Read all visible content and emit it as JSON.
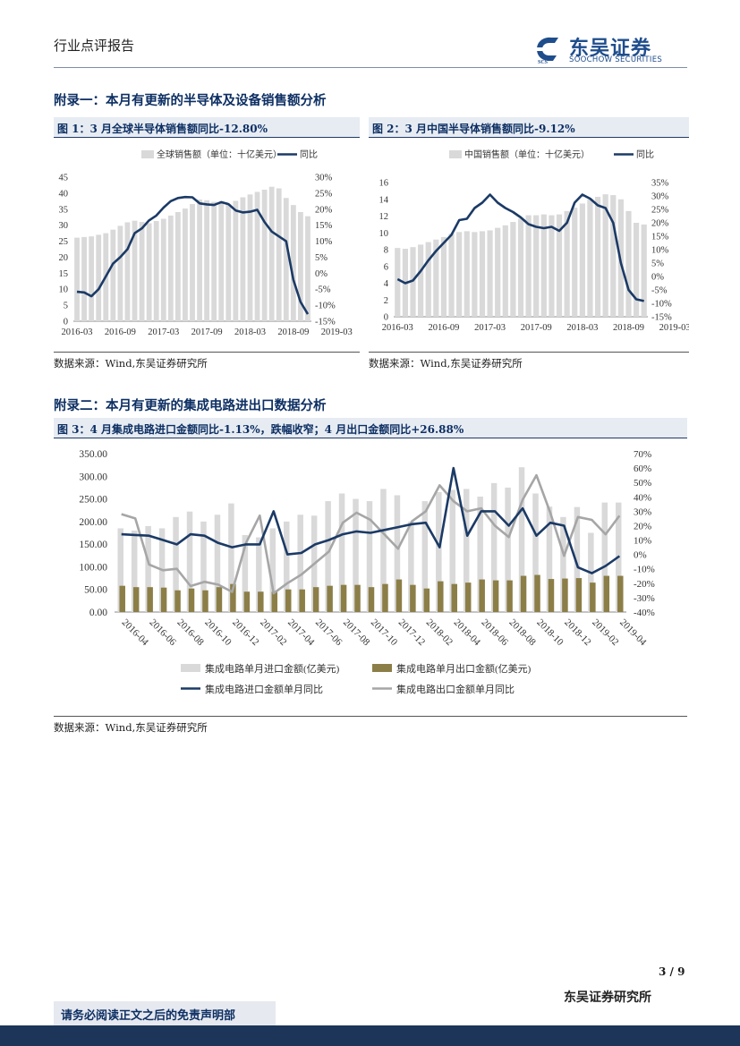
{
  "header": {
    "left_title": "行业点评报告",
    "logo_cn": "东吴证券",
    "logo_en": "SOOCHOW SECURITIES"
  },
  "section1": {
    "title": "附录一：本月有更新的半导体及设备销售额分析",
    "source": "数据来源：Wind,东吴证券研究所"
  },
  "section2": {
    "title": "附录二：本月有更新的集成电路进出口数据分析",
    "source": "数据来源：Wind,东吴证券研究所"
  },
  "footer": {
    "disclaimer": "请务必阅读正文之后的免责声明部",
    "page": "3 / 9",
    "org": "东吴证券研究所"
  },
  "colors": {
    "navy": "#1b3a66",
    "bar_gray": "#d9d9d9",
    "gold": "#8c7e47",
    "line_gray": "#a6a6a6"
  },
  "chart_data": [
    {
      "type": "bar",
      "title": "图 1：3 月全球半导体销售额同比-12.80%",
      "x_tick_labels": [
        "2016-03",
        "2016-09",
        "2017-03",
        "2017-09",
        "2018-03",
        "2018-09",
        "2019-03"
      ],
      "ylim": [
        0,
        45
      ],
      "y_ticks": [
        "0",
        "5",
        "10",
        "15",
        "20",
        "25",
        "30",
        "35",
        "40",
        "45"
      ],
      "y2lim": [
        -15,
        30
      ],
      "y2_ticks": [
        "-15%",
        "-10%",
        "-5%",
        "0%",
        "5%",
        "10%",
        "15%",
        "20%",
        "25%",
        "30%"
      ],
      "legend_placement": "top",
      "series": [
        {
          "name": "全球销售额（单位：十亿美元）",
          "kind": "bar",
          "axis": "left",
          "values": [
            26.1,
            26.3,
            26.5,
            27.0,
            27.5,
            28.6,
            29.8,
            30.9,
            31.4,
            31.0,
            30.6,
            31.3,
            32.0,
            33.0,
            34.1,
            35.2,
            36.6,
            38.0,
            37.8,
            37.3,
            37.0,
            36.6,
            37.6,
            38.7,
            39.6,
            40.4,
            41.1,
            42.0,
            41.5,
            38.5,
            36.3,
            34.1,
            32.8
          ]
        },
        {
          "name": "同比",
          "kind": "line",
          "axis": "right",
          "values": [
            -5.8,
            -6.0,
            -7.2,
            -5.0,
            -1.0,
            3.0,
            5.0,
            7.5,
            12.5,
            14.0,
            16.5,
            18.0,
            20.5,
            22.5,
            23.5,
            23.8,
            23.7,
            21.8,
            21.5,
            21.3,
            22.2,
            21.6,
            19.6,
            19.0,
            19.2,
            19.8,
            16.0,
            13.0,
            11.5,
            10.0,
            -2.0,
            -9.0,
            -12.8
          ]
        }
      ]
    },
    {
      "type": "bar",
      "title": "图 2：3 月中国半导体销售额同比-9.12%",
      "x_tick_labels": [
        "2016-03",
        "2016-09",
        "2017-03",
        "2017-09",
        "2018-03",
        "2018-09",
        "2019-03"
      ],
      "ylim": [
        0,
        16
      ],
      "y_ticks": [
        "0",
        "2",
        "4",
        "6",
        "8",
        "10",
        "12",
        "14",
        "16"
      ],
      "y2lim": [
        -15,
        35
      ],
      "y2_ticks": [
        "-15%",
        "-10%",
        "-5%",
        "0%",
        "5%",
        "10%",
        "15%",
        "20%",
        "25%",
        "30%",
        "35%"
      ],
      "legend_placement": "top",
      "series": [
        {
          "name": "中国销售额（单位：十亿美元）",
          "kind": "bar",
          "axis": "left",
          "values": [
            8.2,
            8.1,
            8.3,
            8.6,
            8.9,
            9.2,
            9.5,
            9.9,
            10.1,
            10.2,
            10.1,
            10.2,
            10.3,
            10.6,
            10.9,
            11.3,
            11.7,
            12.1,
            12.1,
            12.2,
            12.1,
            12.2,
            12.6,
            13.0,
            13.5,
            14.0,
            14.3,
            14.6,
            14.5,
            14.0,
            12.6,
            11.2,
            11.0
          ]
        },
        {
          "name": "同比",
          "kind": "line",
          "axis": "right",
          "values": [
            -1.0,
            -2.5,
            -1.5,
            2.0,
            6.0,
            9.5,
            12.5,
            15.5,
            21.0,
            21.5,
            25.5,
            27.5,
            30.5,
            27.5,
            25.5,
            24.0,
            22.0,
            19.5,
            18.5,
            18.0,
            18.5,
            17.0,
            20.0,
            27.5,
            30.5,
            29.0,
            26.5,
            25.5,
            20.0,
            5.0,
            -5.0,
            -8.5,
            -9.12
          ]
        }
      ]
    },
    {
      "type": "bar",
      "title": "图 3：4 月集成电路进口金额同比-1.13%，跌幅收窄；4 月出口金额同比+26.88%",
      "categories": [
        "2016-04",
        "2016-05",
        "2016-06",
        "2016-07",
        "2016-08",
        "2016-09",
        "2016-10",
        "2016-11",
        "2016-12",
        "2017-01",
        "2017-02",
        "2017-03",
        "2017-04",
        "2017-05",
        "2017-06",
        "2017-07",
        "2017-08",
        "2017-09",
        "2017-10",
        "2017-11",
        "2017-12",
        "2018-01",
        "2018-02",
        "2018-03",
        "2018-04",
        "2018-05",
        "2018-06",
        "2018-07",
        "2018-08",
        "2018-09",
        "2018-10",
        "2018-11",
        "2018-12",
        "2019-01",
        "2019-02",
        "2019-03",
        "2019-04"
      ],
      "x_tick_labels": [
        "2016-04",
        "2016-06",
        "2016-08",
        "2016-10",
        "2016-12",
        "2017-02",
        "2017-04",
        "2017-06",
        "2017-08",
        "2017-10",
        "2017-12",
        "2018-02",
        "2018-04",
        "2018-06",
        "2018-08",
        "2018-10",
        "2018-12",
        "2019-02",
        "2019-04"
      ],
      "ylim": [
        0,
        350
      ],
      "y_ticks": [
        "0.00",
        "50.00",
        "100.00",
        "150.00",
        "200.00",
        "250.00",
        "300.00",
        "350.00"
      ],
      "y2lim": [
        -40,
        70
      ],
      "y2_ticks": [
        "-40%",
        "-30%",
        "-20%",
        "-10%",
        "0%",
        "10%",
        "20%",
        "30%",
        "40%",
        "50%",
        "60%",
        "70%"
      ],
      "legend_placement": "bottom",
      "series": [
        {
          "name": "集成电路单月进口金额(亿美元)",
          "kind": "bar",
          "axis": "left",
          "values": [
            185,
            180,
            190,
            185,
            210,
            222,
            200,
            215,
            240,
            170,
            165,
            185,
            200,
            215,
            213,
            245,
            262,
            250,
            245,
            272,
            258,
            200,
            245,
            265,
            270,
            272,
            255,
            285,
            275,
            320,
            262,
            233,
            210,
            232,
            175,
            242,
            242
          ]
        },
        {
          "name": "集成电路单月出口金额(亿美元)",
          "kind": "bar",
          "axis": "left",
          "values": [
            58,
            55,
            55,
            54,
            48,
            52,
            48,
            55,
            62,
            45,
            45,
            45,
            50,
            50,
            55,
            58,
            60,
            60,
            55,
            62,
            72,
            60,
            52,
            68,
            62,
            65,
            72,
            70,
            70,
            80,
            82,
            73,
            74,
            75,
            65,
            80,
            80
          ]
        },
        {
          "name": "集成电路进口金额单月同比",
          "kind": "line",
          "axis": "right",
          "values": [
            14,
            13.5,
            13,
            10,
            7,
            14,
            13,
            8,
            5,
            7,
            7,
            30,
            0,
            1,
            7,
            10,
            14,
            16,
            15,
            17,
            19,
            21,
            22,
            5,
            60,
            13,
            30,
            30,
            20,
            32,
            13,
            22,
            20,
            -9,
            -13,
            -8,
            -1.13
          ]
        },
        {
          "name": "集成电路出口金额单月同比",
          "kind": "line",
          "axis": "right",
          "values": [
            28,
            25,
            -7,
            -11,
            -10,
            -22,
            -19,
            -21,
            -26,
            8,
            27,
            -27,
            -20,
            -14,
            -6,
            2,
            22,
            29,
            24,
            14,
            4,
            23,
            30,
            48,
            37,
            30,
            32,
            20,
            12,
            38,
            55,
            29,
            -1,
            26,
            24,
            14,
            26.88
          ]
        }
      ]
    }
  ]
}
